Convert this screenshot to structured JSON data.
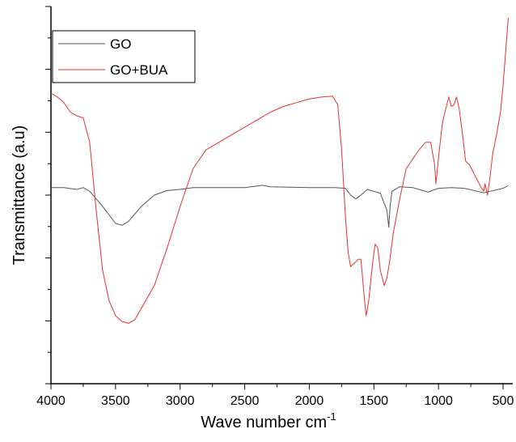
{
  "chart_data": {
    "type": "line",
    "xlabel": "Wave number cm",
    "xlabel_superscript": "-1",
    "ylabel": "Transmittance (a.u)",
    "xlim": [
      4000,
      450
    ],
    "x_reversed": true,
    "y_ticks_labeled": false,
    "ylim": [
      0,
      100
    ],
    "x_ticks": [
      "4000",
      "3500",
      "3000",
      "2500",
      "2000",
      "1500",
      "1000",
      "500"
    ],
    "legend_position": "top-left",
    "series": [
      {
        "name": "GO",
        "color": "#555555",
        "points": [
          [
            4000,
            52
          ],
          [
            3900,
            52
          ],
          [
            3800,
            51.5
          ],
          [
            3750,
            52
          ],
          [
            3700,
            51
          ],
          [
            3600,
            47
          ],
          [
            3500,
            42.5
          ],
          [
            3450,
            42
          ],
          [
            3400,
            43
          ],
          [
            3300,
            47
          ],
          [
            3200,
            50
          ],
          [
            3100,
            51.2
          ],
          [
            3000,
            51.5
          ],
          [
            2900,
            52
          ],
          [
            2700,
            52
          ],
          [
            2500,
            52
          ],
          [
            2360,
            52.6
          ],
          [
            2300,
            52.2
          ],
          [
            2000,
            52
          ],
          [
            1800,
            52
          ],
          [
            1720,
            51.8
          ],
          [
            1680,
            50
          ],
          [
            1640,
            49
          ],
          [
            1600,
            50
          ],
          [
            1550,
            51.5
          ],
          [
            1450,
            50.5
          ],
          [
            1400,
            46
          ],
          [
            1385,
            41.5
          ],
          [
            1375,
            47
          ],
          [
            1360,
            51
          ],
          [
            1300,
            52.2
          ],
          [
            1200,
            52
          ],
          [
            1120,
            51.2
          ],
          [
            1080,
            50.8
          ],
          [
            1050,
            51.2
          ],
          [
            1000,
            51.8
          ],
          [
            900,
            52
          ],
          [
            800,
            51.8
          ],
          [
            700,
            51
          ],
          [
            650,
            50.6
          ],
          [
            600,
            51
          ],
          [
            500,
            51.8
          ],
          [
            460,
            52.5
          ]
        ]
      },
      {
        "name": "GO+BUA",
        "color": "#e8302c",
        "points": [
          [
            4000,
            77
          ],
          [
            3950,
            76
          ],
          [
            3900,
            74.5
          ],
          [
            3850,
            72
          ],
          [
            3800,
            71
          ],
          [
            3750,
            70.5
          ],
          [
            3700,
            64
          ],
          [
            3650,
            46
          ],
          [
            3600,
            30
          ],
          [
            3550,
            22
          ],
          [
            3500,
            18
          ],
          [
            3450,
            16.5
          ],
          [
            3400,
            16
          ],
          [
            3350,
            17
          ],
          [
            3300,
            20
          ],
          [
            3200,
            26
          ],
          [
            3100,
            36
          ],
          [
            3000,
            47
          ],
          [
            2900,
            57
          ],
          [
            2800,
            62
          ],
          [
            2700,
            64
          ],
          [
            2600,
            66
          ],
          [
            2500,
            68
          ],
          [
            2400,
            70
          ],
          [
            2300,
            72
          ],
          [
            2200,
            73.5
          ],
          [
            2100,
            74.5
          ],
          [
            2000,
            75.5
          ],
          [
            1900,
            76
          ],
          [
            1820,
            76.2
          ],
          [
            1780,
            74
          ],
          [
            1750,
            62
          ],
          [
            1720,
            44
          ],
          [
            1700,
            35
          ],
          [
            1680,
            31
          ],
          [
            1650,
            32
          ],
          [
            1620,
            33
          ],
          [
            1600,
            33
          ],
          [
            1580,
            25
          ],
          [
            1560,
            18
          ],
          [
            1540,
            22
          ],
          [
            1510,
            32
          ],
          [
            1490,
            37
          ],
          [
            1470,
            36
          ],
          [
            1450,
            30
          ],
          [
            1420,
            26
          ],
          [
            1400,
            28
          ],
          [
            1380,
            32
          ],
          [
            1350,
            40
          ],
          [
            1300,
            49
          ],
          [
            1250,
            57
          ],
          [
            1200,
            59.5
          ],
          [
            1150,
            62
          ],
          [
            1100,
            64
          ],
          [
            1060,
            64
          ],
          [
            1030,
            58
          ],
          [
            1020,
            53
          ],
          [
            1000,
            60
          ],
          [
            970,
            69
          ],
          [
            950,
            72
          ],
          [
            920,
            76
          ],
          [
            900,
            73.5
          ],
          [
            880,
            74
          ],
          [
            860,
            76
          ],
          [
            840,
            73
          ],
          [
            810,
            65
          ],
          [
            790,
            59
          ],
          [
            760,
            58
          ],
          [
            730,
            56
          ],
          [
            700,
            54
          ],
          [
            670,
            52
          ],
          [
            650,
            51
          ],
          [
            640,
            53
          ],
          [
            620,
            50
          ],
          [
            600,
            55
          ],
          [
            580,
            61
          ],
          [
            550,
            66
          ],
          [
            520,
            72
          ],
          [
            500,
            79
          ],
          [
            480,
            88
          ],
          [
            460,
            97
          ]
        ]
      }
    ]
  }
}
